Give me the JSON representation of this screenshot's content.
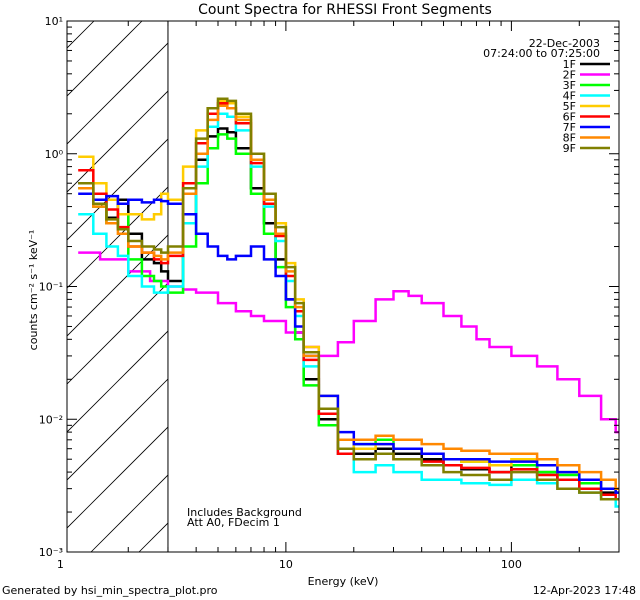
{
  "chart_data": {
    "type": "line",
    "title": "Count Spectra for RHESSI Front Segments",
    "xlabel": "Energy (keV)",
    "ylabel": "counts cm⁻² s⁻¹ keV⁻¹",
    "xscale": "log",
    "yscale": "log",
    "xlim": [
      1.07,
      300
    ],
    "ylim": [
      0.001,
      10
    ],
    "x_ticks": [
      {
        "value": 1,
        "label": "1"
      },
      {
        "value": 10,
        "label": "10"
      },
      {
        "value": 100,
        "label": "100"
      }
    ],
    "y_ticks": [
      {
        "value": 0.001,
        "label": "10⁻³"
      },
      {
        "value": 0.01,
        "label": "10⁻²"
      },
      {
        "value": 0.1,
        "label": "10⁻¹"
      },
      {
        "value": 1,
        "label": "10⁰"
      },
      {
        "value": 10,
        "label": "10¹"
      }
    ],
    "date": "22-Dec-2003",
    "time_range": "07:24:00 to 07:25:00",
    "annotations": [
      "Includes Background",
      "Att A0, FDecim 1"
    ],
    "shaded_region": {
      "from": 1.07,
      "to": 3
    },
    "footer_left": "Generated by hsi_min_spectra_plot.pro",
    "footer_right": "12-Apr-2023 17:48",
    "series": [
      {
        "name": "1F",
        "color": "#000000",
        "x": [
          1.2,
          1.4,
          1.6,
          1.8,
          2.0,
          2.3,
          2.6,
          2.8,
          3.0,
          3.5,
          4.0,
          4.5,
          5.0,
          5.5,
          6.0,
          7.0,
          8.0,
          9.0,
          10,
          11,
          12,
          14,
          17,
          20,
          25,
          30,
          40,
          50,
          60,
          80,
          100,
          130,
          160,
          200,
          250,
          290
        ],
        "y": [
          0.6,
          0.45,
          0.33,
          0.45,
          0.25,
          0.16,
          0.15,
          0.13,
          0.11,
          0.35,
          0.9,
          1.35,
          1.55,
          1.45,
          1.1,
          0.55,
          0.3,
          0.16,
          0.08,
          0.045,
          0.02,
          0.01,
          0.006,
          0.0055,
          0.006,
          0.0055,
          0.005,
          0.0045,
          0.0042,
          0.004,
          0.0045,
          0.004,
          0.0035,
          0.003,
          0.0028,
          0.003
        ]
      },
      {
        "name": "2F",
        "color": "#ff00ff",
        "x": [
          1.2,
          1.5,
          2.0,
          2.5,
          3.0,
          3.5,
          4.0,
          5.0,
          6.0,
          7.0,
          8.0,
          10,
          12,
          14,
          17,
          20,
          25,
          30,
          35,
          40,
          50,
          60,
          70,
          80,
          100,
          130,
          160,
          200,
          250,
          290
        ],
        "y": [
          0.18,
          0.16,
          0.13,
          0.11,
          0.1,
          0.095,
          0.09,
          0.075,
          0.065,
          0.06,
          0.055,
          0.045,
          0.035,
          0.03,
          0.038,
          0.055,
          0.08,
          0.092,
          0.085,
          0.075,
          0.06,
          0.05,
          0.04,
          0.035,
          0.03,
          0.025,
          0.02,
          0.015,
          0.01,
          0.008
        ]
      },
      {
        "name": "3F",
        "color": "#00ff00",
        "x": [
          1.2,
          1.4,
          1.6,
          1.8,
          2.0,
          2.3,
          2.6,
          2.8,
          3.0,
          3.5,
          4.0,
          4.5,
          5.0,
          5.5,
          6.0,
          7.0,
          8.0,
          9.0,
          10,
          11,
          12,
          14,
          17,
          20,
          25,
          30,
          40,
          50,
          60,
          80,
          100,
          130,
          160,
          200,
          250,
          290
        ],
        "y": [
          0.55,
          0.4,
          0.3,
          0.35,
          0.16,
          0.12,
          0.11,
          0.1,
          0.09,
          0.2,
          0.6,
          1.1,
          1.4,
          1.3,
          1.0,
          0.5,
          0.25,
          0.14,
          0.07,
          0.04,
          0.018,
          0.009,
          0.006,
          0.0065,
          0.007,
          0.006,
          0.0055,
          0.005,
          0.0048,
          0.0045,
          0.0045,
          0.004,
          0.0038,
          0.0033,
          0.003,
          0.0028
        ]
      },
      {
        "name": "4F",
        "color": "#00ffff",
        "x": [
          1.2,
          1.4,
          1.6,
          1.8,
          2.0,
          2.3,
          2.6,
          2.8,
          3.0,
          3.5,
          4.0,
          4.5,
          5.0,
          5.5,
          6.0,
          7.0,
          8.0,
          9.0,
          10,
          11,
          12,
          14,
          17,
          20,
          25,
          30,
          40,
          50,
          60,
          80,
          100,
          130,
          160,
          200,
          250,
          290
        ],
        "y": [
          0.35,
          0.25,
          0.2,
          0.17,
          0.12,
          0.1,
          0.09,
          0.09,
          0.1,
          0.3,
          0.8,
          1.6,
          2.0,
          1.9,
          1.5,
          0.8,
          0.4,
          0.22,
          0.11,
          0.06,
          0.025,
          0.012,
          0.0055,
          0.004,
          0.0045,
          0.004,
          0.0035,
          0.0035,
          0.0033,
          0.0032,
          0.0035,
          0.0033,
          0.003,
          0.0028,
          0.0025,
          0.0022
        ]
      },
      {
        "name": "5F",
        "color": "#ffcc00",
        "x": [
          1.2,
          1.4,
          1.6,
          1.8,
          2.0,
          2.3,
          2.6,
          2.8,
          3.0,
          3.5,
          4.0,
          4.5,
          5.0,
          5.5,
          6.0,
          7.0,
          8.0,
          9.0,
          10,
          11,
          12,
          14,
          17,
          20,
          25,
          30,
          40,
          50,
          60,
          80,
          100,
          130,
          160,
          200,
          250,
          290
        ],
        "y": [
          0.95,
          0.6,
          0.45,
          0.35,
          0.35,
          0.32,
          0.35,
          0.5,
          0.45,
          0.8,
          1.5,
          2.2,
          2.5,
          2.4,
          1.9,
          1.0,
          0.5,
          0.3,
          0.15,
          0.08,
          0.035,
          0.015,
          0.007,
          0.006,
          0.0065,
          0.006,
          0.0055,
          0.005,
          0.0048,
          0.0045,
          0.005,
          0.0045,
          0.004,
          0.0035,
          0.003,
          0.0028
        ]
      },
      {
        "name": "6F",
        "color": "#ff0000",
        "x": [
          1.2,
          1.4,
          1.6,
          1.8,
          2.0,
          2.3,
          2.6,
          2.8,
          3.0,
          3.5,
          4.0,
          4.5,
          5.0,
          5.5,
          6.0,
          7.0,
          8.0,
          9.0,
          10,
          11,
          12,
          14,
          17,
          20,
          25,
          30,
          40,
          50,
          60,
          80,
          100,
          130,
          160,
          200,
          250,
          290
        ],
        "y": [
          0.75,
          0.5,
          0.38,
          0.28,
          0.2,
          0.18,
          0.16,
          0.15,
          0.17,
          0.6,
          1.2,
          2.0,
          2.4,
          2.2,
          1.7,
          0.85,
          0.42,
          0.24,
          0.12,
          0.065,
          0.028,
          0.011,
          0.0055,
          0.005,
          0.0055,
          0.005,
          0.0048,
          0.0045,
          0.0043,
          0.004,
          0.0042,
          0.0038,
          0.0035,
          0.003,
          0.0027,
          0.0025
        ]
      },
      {
        "name": "7F",
        "color": "#0000ff",
        "x": [
          1.2,
          1.4,
          1.6,
          1.8,
          2.0,
          2.3,
          2.6,
          2.8,
          3.0,
          3.5,
          4.0,
          4.5,
          5.0,
          5.5,
          6.0,
          7.0,
          8.0,
          9.0,
          10,
          11,
          12,
          14,
          17,
          20,
          25,
          30,
          40,
          50,
          60,
          80,
          100,
          130,
          160,
          200,
          250,
          290
        ],
        "y": [
          0.5,
          0.45,
          0.48,
          0.42,
          0.45,
          0.43,
          0.45,
          0.44,
          0.42,
          0.35,
          0.25,
          0.2,
          0.17,
          0.16,
          0.17,
          0.2,
          0.16,
          0.12,
          0.08,
          0.05,
          0.03,
          0.015,
          0.008,
          0.0065,
          0.0065,
          0.006,
          0.0055,
          0.005,
          0.005,
          0.0048,
          0.0048,
          0.0045,
          0.004,
          0.0035,
          0.003,
          0.0028
        ]
      },
      {
        "name": "8F",
        "color": "#ff8800",
        "x": [
          1.2,
          1.4,
          1.6,
          1.8,
          2.0,
          2.3,
          2.6,
          2.8,
          3.0,
          3.5,
          4.0,
          4.5,
          5.0,
          5.5,
          6.0,
          7.0,
          8.0,
          9.0,
          10,
          11,
          12,
          14,
          17,
          20,
          25,
          30,
          40,
          50,
          60,
          80,
          100,
          130,
          160,
          200,
          250,
          290
        ],
        "y": [
          0.55,
          0.4,
          0.3,
          0.25,
          0.2,
          0.18,
          0.17,
          0.16,
          0.18,
          0.5,
          1.0,
          1.8,
          2.3,
          2.2,
          1.8,
          0.9,
          0.45,
          0.25,
          0.13,
          0.07,
          0.03,
          0.012,
          0.007,
          0.007,
          0.0075,
          0.007,
          0.0065,
          0.006,
          0.0058,
          0.0055,
          0.0055,
          0.005,
          0.0045,
          0.004,
          0.0035,
          0.003
        ]
      },
      {
        "name": "9F",
        "color": "#808000",
        "x": [
          1.2,
          1.4,
          1.6,
          1.8,
          2.0,
          2.3,
          2.6,
          2.8,
          3.0,
          3.5,
          4.0,
          4.5,
          5.0,
          5.5,
          6.0,
          7.0,
          8.0,
          9.0,
          10,
          11,
          12,
          14,
          17,
          20,
          25,
          30,
          40,
          50,
          60,
          80,
          100,
          130,
          160,
          200,
          250,
          290
        ],
        "y": [
          0.6,
          0.42,
          0.32,
          0.27,
          0.22,
          0.2,
          0.19,
          0.18,
          0.2,
          0.55,
          1.3,
          2.2,
          2.6,
          2.5,
          2.0,
          1.0,
          0.5,
          0.28,
          0.14,
          0.075,
          0.032,
          0.012,
          0.006,
          0.005,
          0.0055,
          0.005,
          0.0045,
          0.004,
          0.0038,
          0.0035,
          0.004,
          0.0035,
          0.003,
          0.0028,
          0.0025,
          0.0025
        ]
      }
    ]
  }
}
